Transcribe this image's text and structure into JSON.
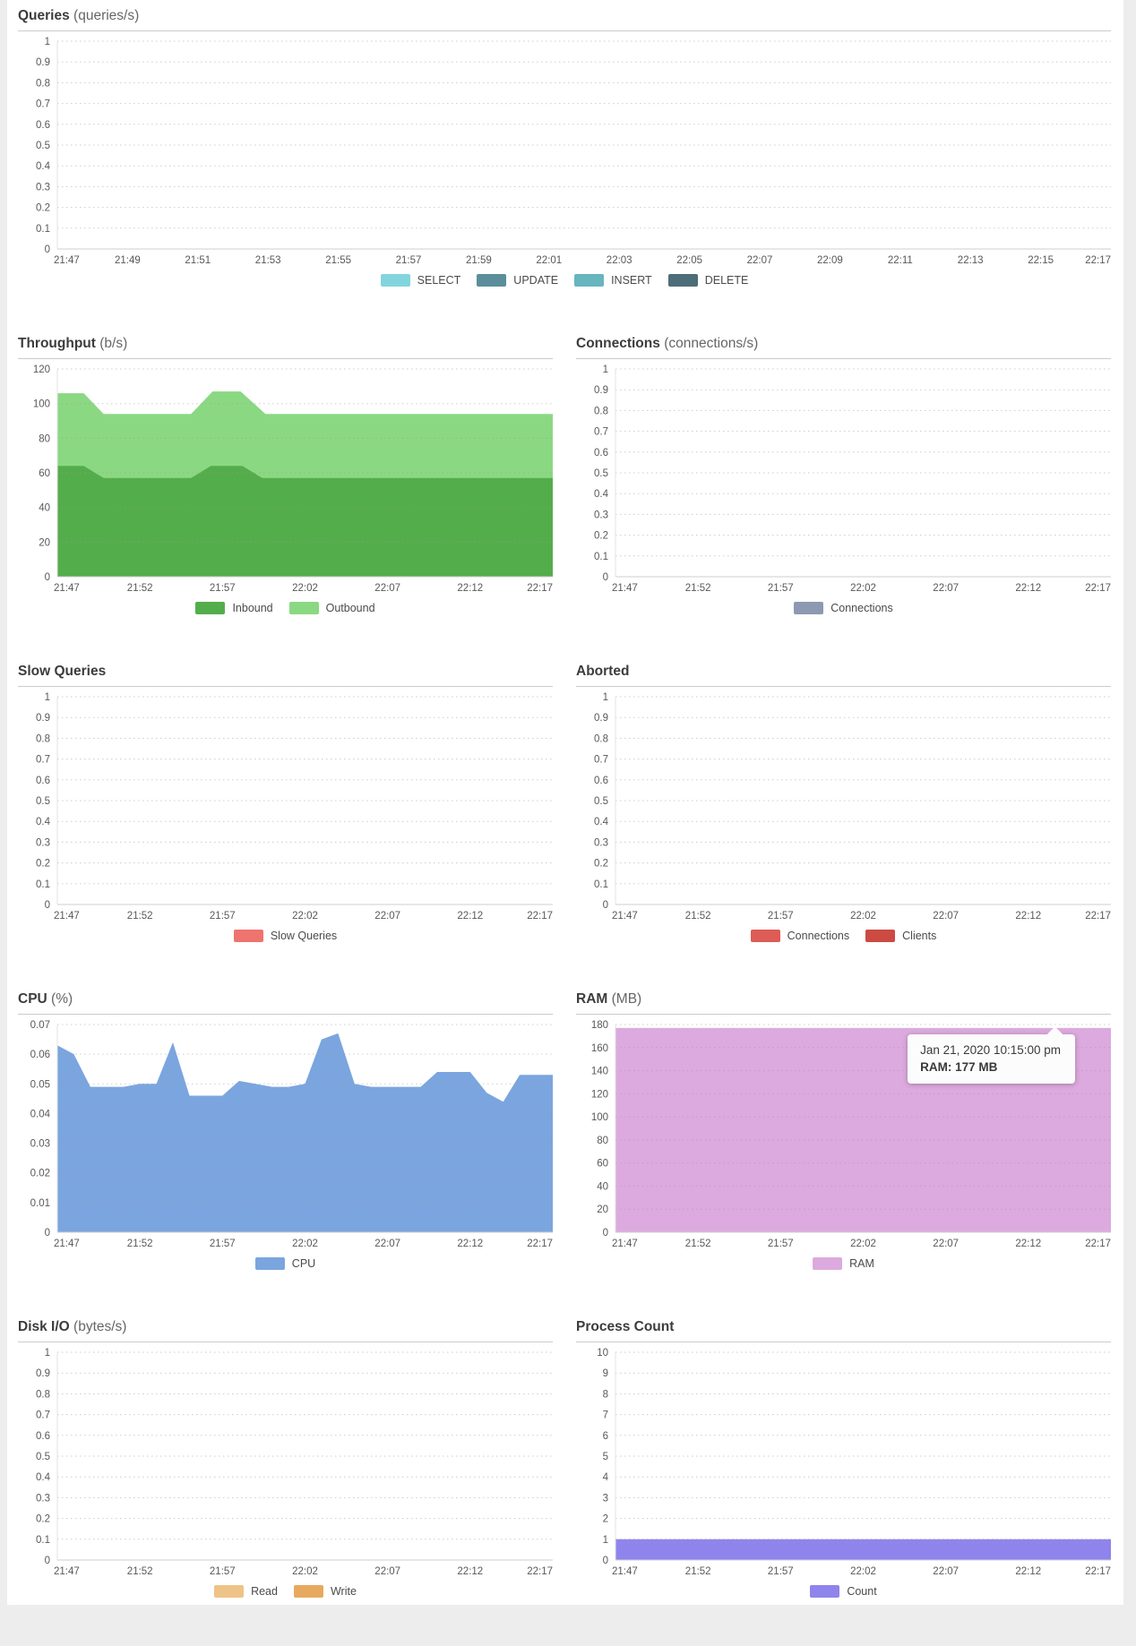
{
  "page": {
    "background": "#ededed",
    "card_background": "#ffffff"
  },
  "chart_data": [
    {
      "id": "queries",
      "type": "area",
      "title": "Queries",
      "unit": "(queries/s)",
      "ylim": [
        0,
        1
      ],
      "ytick_labels": [
        "1",
        "0.9",
        "0.8",
        "0.7",
        "0.6",
        "0.5",
        "0.4",
        "0.3",
        "0.2",
        "0.1",
        "0"
      ],
      "ytick_values": [
        1,
        0.9,
        0.8,
        0.7,
        0.6,
        0.5,
        0.4,
        0.3,
        0.2,
        0.1,
        0
      ],
      "xticks": [
        "21:47",
        "21:49",
        "21:51",
        "21:53",
        "21:55",
        "21:57",
        "21:59",
        "22:01",
        "22:03",
        "22:05",
        "22:07",
        "22:09",
        "22:11",
        "22:13",
        "22:15",
        "22:17"
      ],
      "x_range_minutes": 30,
      "grid": true,
      "legend_position": "bottom",
      "series": [
        {
          "name": "SELECT",
          "color": "#82d5dc",
          "points": []
        },
        {
          "name": "UPDATE",
          "color": "#5b8e9a",
          "points": []
        },
        {
          "name": "INSERT",
          "color": "#66b5bf",
          "points": []
        },
        {
          "name": "DELETE",
          "color": "#4d6d78",
          "points": []
        }
      ]
    },
    {
      "id": "throughput",
      "type": "area",
      "title": "Throughput",
      "unit": "(b/s)",
      "ylim": [
        0,
        120
      ],
      "ytick_labels": [
        "120",
        "100",
        "80",
        "60",
        "40",
        "20",
        "0"
      ],
      "ytick_values": [
        120,
        100,
        80,
        60,
        40,
        20,
        0
      ],
      "xticks": [
        "21:47",
        "21:52",
        "21:57",
        "22:02",
        "22:07",
        "22:12",
        "22:17"
      ],
      "x_range_minutes": 30,
      "grid": true,
      "legend_position": "bottom",
      "series": [
        {
          "name": "Inbound",
          "color": "#54ad4b",
          "points": [
            [
              0,
              64
            ],
            [
              1.6,
              64
            ],
            [
              2.8,
              57
            ],
            [
              8.1,
              57
            ],
            [
              9.3,
              64
            ],
            [
              11.2,
              64
            ],
            [
              12.4,
              57
            ],
            [
              30,
              57
            ]
          ]
        },
        {
          "name": "Outbound",
          "color": "#8bd883",
          "points": [
            [
              0,
              106
            ],
            [
              1.6,
              106
            ],
            [
              2.8,
              94
            ],
            [
              8.1,
              94
            ],
            [
              9.4,
              107
            ],
            [
              11.1,
              107
            ],
            [
              12.6,
              94
            ],
            [
              30,
              94
            ]
          ]
        }
      ]
    },
    {
      "id": "connections",
      "type": "area",
      "title": "Connections",
      "unit": "(connections/s)",
      "ylim": [
        0,
        1
      ],
      "ytick_labels": [
        "1",
        "0.9",
        "0.8",
        "0.7",
        "0.6",
        "0.5",
        "0.4",
        "0.3",
        "0.2",
        "0.1",
        "0"
      ],
      "ytick_values": [
        1,
        0.9,
        0.8,
        0.7,
        0.6,
        0.5,
        0.4,
        0.3,
        0.2,
        0.1,
        0
      ],
      "xticks": [
        "21:47",
        "21:52",
        "21:57",
        "22:02",
        "22:07",
        "22:12",
        "22:17"
      ],
      "x_range_minutes": 30,
      "grid": true,
      "legend_position": "bottom",
      "series": [
        {
          "name": "Connections",
          "color": "#8c99b0",
          "points": []
        }
      ]
    },
    {
      "id": "slow-queries",
      "type": "area",
      "title": "Slow Queries",
      "unit": "",
      "ylim": [
        0,
        1
      ],
      "ytick_labels": [
        "1",
        "0.9",
        "0.8",
        "0.7",
        "0.6",
        "0.5",
        "0.4",
        "0.3",
        "0.2",
        "0.1",
        "0"
      ],
      "ytick_values": [
        1,
        0.9,
        0.8,
        0.7,
        0.6,
        0.5,
        0.4,
        0.3,
        0.2,
        0.1,
        0
      ],
      "xticks": [
        "21:47",
        "21:52",
        "21:57",
        "22:02",
        "22:07",
        "22:12",
        "22:17"
      ],
      "x_range_minutes": 30,
      "grid": true,
      "legend_position": "bottom",
      "series": [
        {
          "name": "Slow Queries",
          "color": "#ef736f",
          "points": []
        }
      ]
    },
    {
      "id": "aborted",
      "type": "area",
      "title": "Aborted",
      "unit": "",
      "ylim": [
        0,
        1
      ],
      "ytick_labels": [
        "1",
        "0.9",
        "0.8",
        "0.7",
        "0.6",
        "0.5",
        "0.4",
        "0.3",
        "0.2",
        "0.1",
        "0"
      ],
      "ytick_values": [
        1,
        0.9,
        0.8,
        0.7,
        0.6,
        0.5,
        0.4,
        0.3,
        0.2,
        0.1,
        0
      ],
      "xticks": [
        "21:47",
        "21:52",
        "21:57",
        "22:02",
        "22:07",
        "22:12",
        "22:17"
      ],
      "x_range_minutes": 30,
      "grid": true,
      "legend_position": "bottom",
      "series": [
        {
          "name": "Connections",
          "color": "#dd5c55",
          "points": []
        },
        {
          "name": "Clients",
          "color": "#cb4b43",
          "points": []
        }
      ]
    },
    {
      "id": "cpu",
      "type": "area",
      "title": "CPU",
      "unit": "(%)",
      "ylim": [
        0,
        0.07
      ],
      "ytick_labels": [
        "0.07",
        "0.06",
        "0.05",
        "0.04",
        "0.03",
        "0.02",
        "0.01",
        "0"
      ],
      "ytick_values": [
        0.07,
        0.06,
        0.05,
        0.04,
        0.03,
        0.02,
        0.01,
        0
      ],
      "xticks": [
        "21:47",
        "21:52",
        "21:57",
        "22:02",
        "22:07",
        "22:12",
        "22:17"
      ],
      "x_range_minutes": 30,
      "grid": true,
      "legend_position": "bottom",
      "series": [
        {
          "name": "CPU",
          "color": "#7ba5df",
          "points": [
            [
              0,
              0.063
            ],
            [
              1,
              0.06
            ],
            [
              2,
              0.049
            ],
            [
              3,
              0.049
            ],
            [
              4,
              0.049
            ],
            [
              5,
              0.05
            ],
            [
              6,
              0.05
            ],
            [
              7,
              0.064
            ],
            [
              8,
              0.046
            ],
            [
              9,
              0.046
            ],
            [
              10,
              0.046
            ],
            [
              11,
              0.051
            ],
            [
              12,
              0.05
            ],
            [
              13,
              0.049
            ],
            [
              14,
              0.049
            ],
            [
              15,
              0.05
            ],
            [
              16,
              0.065
            ],
            [
              17,
              0.067
            ],
            [
              18,
              0.05
            ],
            [
              19,
              0.049
            ],
            [
              20,
              0.049
            ],
            [
              21,
              0.049
            ],
            [
              22,
              0.049
            ],
            [
              23,
              0.054
            ],
            [
              24,
              0.054
            ],
            [
              25,
              0.054
            ],
            [
              26,
              0.047
            ],
            [
              27,
              0.044
            ],
            [
              28,
              0.053
            ],
            [
              29,
              0.053
            ],
            [
              30,
              0.053
            ]
          ]
        }
      ]
    },
    {
      "id": "ram",
      "type": "area",
      "title": "RAM",
      "unit": "(MB)",
      "ylim": [
        0,
        180
      ],
      "ytick_labels": [
        "180",
        "160",
        "140",
        "120",
        "100",
        "80",
        "60",
        "40",
        "20",
        "0"
      ],
      "ytick_values": [
        180,
        160,
        140,
        120,
        100,
        80,
        60,
        40,
        20,
        0
      ],
      "xticks": [
        "21:47",
        "21:52",
        "21:57",
        "22:02",
        "22:07",
        "22:12",
        "22:17"
      ],
      "x_range_minutes": 30,
      "grid": true,
      "legend_position": "bottom",
      "tooltip": {
        "line1": "Jan 21, 2020 10:15:00 pm",
        "line2": "RAM: 177 MB"
      },
      "series": [
        {
          "name": "RAM",
          "color": "#dcaade",
          "points": [
            [
              0,
              177
            ],
            [
              30,
              177
            ]
          ]
        }
      ]
    },
    {
      "id": "disk-io",
      "type": "area",
      "title": "Disk I/O",
      "unit": "(bytes/s)",
      "ylim": [
        0,
        1
      ],
      "ytick_labels": [
        "1",
        "0.9",
        "0.8",
        "0.7",
        "0.6",
        "0.5",
        "0.4",
        "0.3",
        "0.2",
        "0.1",
        "0"
      ],
      "ytick_values": [
        1,
        0.9,
        0.8,
        0.7,
        0.6,
        0.5,
        0.4,
        0.3,
        0.2,
        0.1,
        0
      ],
      "xticks": [
        "21:47",
        "21:52",
        "21:57",
        "22:02",
        "22:07",
        "22:12",
        "22:17"
      ],
      "x_range_minutes": 30,
      "grid": true,
      "legend_position": "bottom",
      "series": [
        {
          "name": "Read",
          "color": "#eec387",
          "points": []
        },
        {
          "name": "Write",
          "color": "#e7a95f",
          "points": []
        }
      ]
    },
    {
      "id": "process-count",
      "type": "area",
      "title": "Process Count",
      "unit": "",
      "ylim": [
        0,
        10
      ],
      "ytick_labels": [
        "10",
        "9",
        "8",
        "7",
        "6",
        "5",
        "4",
        "3",
        "2",
        "1",
        "0"
      ],
      "ytick_values": [
        10,
        9,
        8,
        7,
        6,
        5,
        4,
        3,
        2,
        1,
        0
      ],
      "xticks": [
        "21:47",
        "21:52",
        "21:57",
        "22:02",
        "22:07",
        "22:12",
        "22:17"
      ],
      "x_range_minutes": 30,
      "grid": true,
      "legend_position": "bottom",
      "series": [
        {
          "name": "Count",
          "color": "#8f84ec",
          "points": [
            [
              0,
              1
            ],
            [
              30,
              1
            ]
          ]
        }
      ]
    }
  ]
}
